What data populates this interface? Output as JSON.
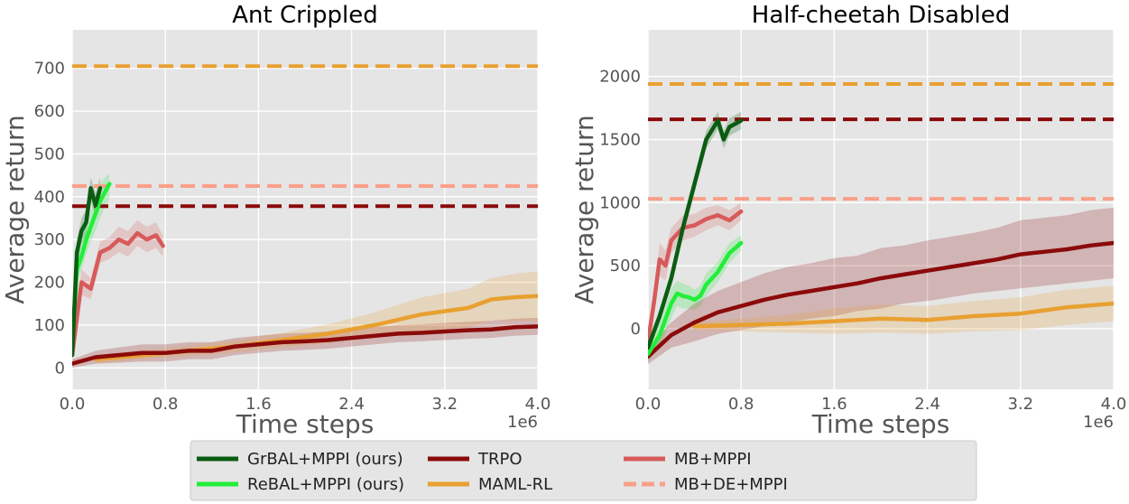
{
  "chart_data": [
    {
      "type": "line",
      "title": "Ant Crippled",
      "xlabel": "Time steps",
      "ylabel": "Average return",
      "x_scale_label": "1e6",
      "xlim": [
        0,
        4.0
      ],
      "ylim": [
        -50,
        790
      ],
      "xticks": [
        0.0,
        0.8,
        1.6,
        2.4,
        3.2,
        4.0
      ],
      "xtick_labels": [
        "0.0",
        "0.8",
        "1.6",
        "2.4",
        "3.2",
        "4.0"
      ],
      "yticks": [
        0,
        100,
        200,
        300,
        400,
        500,
        600,
        700
      ],
      "ytick_labels": [
        "0",
        "100",
        "200",
        "300",
        "400",
        "500",
        "600",
        "700"
      ],
      "grid": true,
      "series": [
        {
          "name": "GrBAL+MPPI (ours)",
          "color": "#0a5c12",
          "style": "solid",
          "x": [
            0.0,
            0.04,
            0.08,
            0.12,
            0.16,
            0.2,
            0.24
          ],
          "y": [
            30,
            270,
            320,
            340,
            420,
            380,
            420
          ],
          "lo": [
            20,
            240,
            290,
            310,
            390,
            350,
            390
          ],
          "hi": [
            40,
            300,
            350,
            370,
            445,
            410,
            445
          ]
        },
        {
          "name": "ReBAL+MPPI (ours)",
          "color": "#22ee3a",
          "style": "solid",
          "x": [
            0.0,
            0.04,
            0.08,
            0.12,
            0.16,
            0.2,
            0.24,
            0.28,
            0.32
          ],
          "y": [
            50,
            230,
            260,
            300,
            330,
            360,
            390,
            410,
            430
          ],
          "lo": [
            35,
            200,
            230,
            265,
            295,
            320,
            350,
            375,
            395
          ],
          "hi": [
            65,
            260,
            290,
            335,
            365,
            400,
            430,
            445,
            455
          ]
        },
        {
          "name": "TRPO",
          "color": "#8b0a0a",
          "style": "solid",
          "x": [
            0.0,
            0.2,
            0.4,
            0.6,
            0.8,
            1.0,
            1.2,
            1.4,
            1.6,
            1.8,
            2.0,
            2.2,
            2.4,
            2.6,
            2.8,
            3.0,
            3.2,
            3.4,
            3.6,
            3.8,
            4.0
          ],
          "y": [
            10,
            25,
            30,
            35,
            35,
            40,
            40,
            50,
            55,
            60,
            62,
            65,
            70,
            75,
            80,
            82,
            85,
            88,
            90,
            95,
            97
          ],
          "lo": [
            0,
            10,
            12,
            15,
            15,
            20,
            20,
            30,
            35,
            40,
            42,
            45,
            50,
            55,
            60,
            62,
            65,
            68,
            70,
            75,
            77
          ],
          "hi": [
            20,
            40,
            48,
            55,
            55,
            60,
            60,
            70,
            75,
            80,
            82,
            85,
            90,
            95,
            100,
            102,
            105,
            108,
            110,
            115,
            117
          ]
        },
        {
          "name": "MAML-RL",
          "color": "#e8a030",
          "style": "solid",
          "x": [
            0.2,
            0.6,
            1.0,
            1.4,
            1.8,
            2.2,
            2.6,
            3.0,
            3.4,
            3.6,
            3.8,
            4.0
          ],
          "y": [
            20,
            30,
            40,
            50,
            65,
            80,
            100,
            125,
            140,
            160,
            165,
            168
          ],
          "lo": [
            10,
            20,
            28,
            36,
            48,
            58,
            70,
            85,
            95,
            110,
            110,
            110
          ],
          "hi": [
            30,
            40,
            52,
            64,
            82,
            102,
            130,
            165,
            185,
            210,
            220,
            226
          ]
        },
        {
          "name": "MB+MPPI",
          "color": "#d75a5a",
          "style": "solid",
          "x": [
            0.0,
            0.08,
            0.16,
            0.24,
            0.32,
            0.4,
            0.48,
            0.56,
            0.64,
            0.72,
            0.78
          ],
          "y": [
            30,
            200,
            185,
            270,
            280,
            300,
            290,
            315,
            300,
            310,
            285
          ],
          "lo": [
            15,
            170,
            160,
            245,
            255,
            270,
            260,
            285,
            270,
            280,
            260
          ],
          "hi": [
            45,
            230,
            210,
            295,
            305,
            330,
            320,
            345,
            330,
            340,
            310
          ]
        },
        {
          "name": "MB+DE+MPPI",
          "color": "#f9a08a",
          "style": "dashed",
          "hline": 425
        }
      ],
      "hlines": [
        {
          "name": "MAML-RL",
          "value": 705,
          "color": "#e8a030"
        },
        {
          "name": "TRPO",
          "value": 378,
          "color": "#8b0a0a"
        },
        {
          "name": "MB+DE+MPPI",
          "value": 425,
          "color": "#f9a08a"
        }
      ]
    },
    {
      "type": "line",
      "title": "Half-cheetah Disabled",
      "xlabel": "Time steps",
      "ylabel": "Average return",
      "x_scale_label": "1e6",
      "xlim": [
        0,
        4.0
      ],
      "ylim": [
        -480,
        2370
      ],
      "xticks": [
        0.0,
        0.8,
        1.6,
        2.4,
        3.2,
        4.0
      ],
      "xtick_labels": [
        "0.0",
        "0.8",
        "1.6",
        "2.4",
        "3.2",
        "4.0"
      ],
      "yticks": [
        0,
        500,
        1000,
        1500,
        2000
      ],
      "ytick_labels": [
        "0",
        "500",
        "1000",
        "1500",
        "2000"
      ],
      "grid": true,
      "series": [
        {
          "name": "GrBAL+MPPI (ours)",
          "color": "#0a5c12",
          "style": "solid",
          "x": [
            0.0,
            0.1,
            0.2,
            0.3,
            0.4,
            0.5,
            0.6,
            0.65,
            0.7,
            0.8
          ],
          "y": [
            -150,
            100,
            400,
            800,
            1150,
            1500,
            1650,
            1500,
            1600,
            1650
          ],
          "lo": [
            -200,
            50,
            340,
            730,
            1080,
            1430,
            1580,
            1430,
            1530,
            1580
          ],
          "hi": [
            -100,
            150,
            460,
            870,
            1220,
            1570,
            1720,
            1570,
            1670,
            1720
          ]
        },
        {
          "name": "ReBAL+MPPI (ours)",
          "color": "#22ee3a",
          "style": "solid",
          "x": [
            0.0,
            0.1,
            0.2,
            0.25,
            0.3,
            0.35,
            0.4,
            0.45,
            0.5,
            0.6,
            0.7,
            0.8
          ],
          "y": [
            -200,
            -50,
            200,
            280,
            260,
            250,
            230,
            260,
            350,
            450,
            600,
            680
          ],
          "lo": [
            -260,
            -150,
            80,
            180,
            160,
            160,
            150,
            180,
            260,
            370,
            520,
            620
          ],
          "hi": [
            -140,
            50,
            320,
            380,
            360,
            340,
            310,
            340,
            440,
            530,
            680,
            740
          ]
        },
        {
          "name": "TRPO",
          "color": "#8b0a0a",
          "style": "solid",
          "x": [
            0.0,
            0.2,
            0.4,
            0.6,
            0.8,
            1.0,
            1.2,
            1.4,
            1.6,
            1.8,
            2.0,
            2.2,
            2.4,
            2.6,
            2.8,
            3.0,
            3.2,
            3.4,
            3.6,
            3.8,
            4.0
          ],
          "y": [
            -220,
            -50,
            50,
            130,
            180,
            230,
            270,
            300,
            330,
            360,
            400,
            430,
            460,
            490,
            520,
            550,
            590,
            610,
            630,
            660,
            680
          ],
          "lo": [
            -280,
            -150,
            -100,
            -40,
            -10,
            20,
            50,
            80,
            100,
            140,
            160,
            200,
            220,
            250,
            280,
            300,
            320,
            340,
            360,
            380,
            400
          ],
          "hi": [
            -160,
            50,
            200,
            300,
            370,
            440,
            490,
            520,
            560,
            580,
            640,
            660,
            700,
            730,
            760,
            800,
            860,
            880,
            900,
            940,
            960
          ]
        },
        {
          "name": "MAML-RL",
          "color": "#e8a030",
          "style": "solid",
          "x": [
            0.4,
            0.8,
            1.2,
            1.6,
            2.0,
            2.4,
            2.8,
            3.2,
            3.6,
            4.0
          ],
          "y": [
            20,
            30,
            40,
            60,
            80,
            70,
            100,
            120,
            170,
            200
          ],
          "lo": [
            -10,
            -20,
            -30,
            -40,
            -30,
            -40,
            -20,
            -10,
            30,
            60
          ],
          "hi": [
            50,
            80,
            110,
            160,
            190,
            180,
            220,
            250,
            310,
            340
          ]
        },
        {
          "name": "MB+MPPI",
          "color": "#d75a5a",
          "style": "solid",
          "x": [
            0.0,
            0.05,
            0.1,
            0.15,
            0.2,
            0.3,
            0.4,
            0.5,
            0.6,
            0.7,
            0.8
          ],
          "y": [
            -100,
            200,
            550,
            500,
            700,
            800,
            820,
            870,
            900,
            860,
            930
          ],
          "lo": [
            -180,
            100,
            420,
            380,
            600,
            700,
            730,
            780,
            820,
            780,
            860
          ],
          "hi": [
            -20,
            300,
            680,
            620,
            800,
            900,
            910,
            960,
            980,
            940,
            1000
          ]
        },
        {
          "name": "MB+DE+MPPI",
          "color": "#f9a08a",
          "style": "dashed",
          "hline": 1030
        }
      ],
      "hlines": [
        {
          "name": "MAML-RL",
          "value": 1940,
          "color": "#e8a030"
        },
        {
          "name": "TRPO",
          "value": 1660,
          "color": "#8b0a0a"
        },
        {
          "name": "MB+DE+MPPI",
          "value": 1030,
          "color": "#f9a08a"
        }
      ]
    }
  ],
  "legend": {
    "entries": [
      {
        "label": "GrBAL+MPPI (ours)",
        "color": "#0a5c12",
        "style": "solid"
      },
      {
        "label": "ReBAL+MPPI (ours)",
        "color": "#22ee3a",
        "style": "solid"
      },
      {
        "label": "TRPO",
        "color": "#8b0a0a",
        "style": "solid"
      },
      {
        "label": "MAML-RL",
        "color": "#e8a030",
        "style": "solid"
      },
      {
        "label": "MB+MPPI",
        "color": "#d75a5a",
        "style": "solid"
      },
      {
        "label": "MB+DE+MPPI",
        "color": "#f9a08a",
        "style": "dashed"
      }
    ]
  },
  "colors": {
    "axes_bg": "#e5e5e5",
    "grid": "#ffffff",
    "tick_text": "#555555"
  }
}
